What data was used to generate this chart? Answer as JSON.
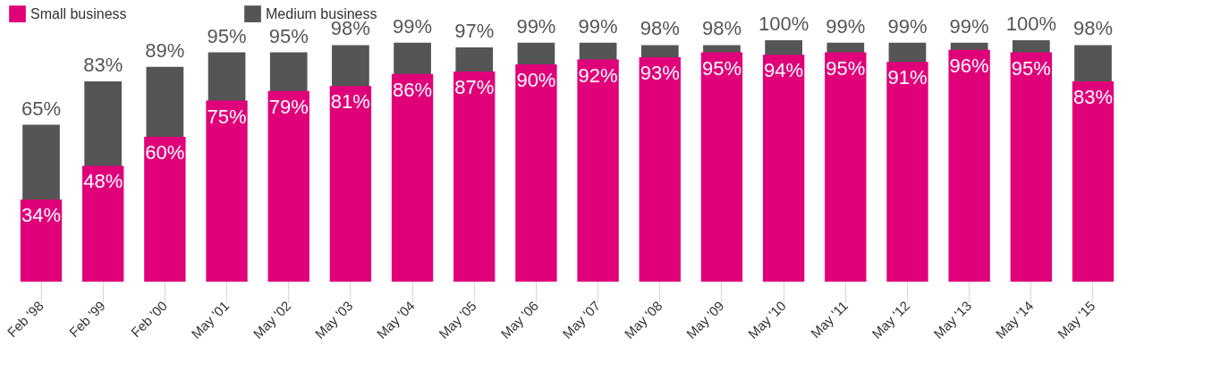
{
  "chart_data": {
    "type": "bar",
    "categories": [
      "Feb '98",
      "Feb '99",
      "Feb '00",
      "May '01",
      "May '02",
      "May '03",
      "May '04",
      "May '05",
      "May '06",
      "May '07",
      "May '08",
      "May '09",
      "May '10",
      "May '11",
      "May '12",
      "May '13",
      "May '14",
      "May '15"
    ],
    "series": [
      {
        "name": "Small business",
        "color": "#e0007a",
        "values": [
          34,
          48,
          60,
          75,
          79,
          81,
          86,
          87,
          90,
          92,
          93,
          95,
          94,
          95,
          91,
          96,
          95,
          83
        ],
        "value_labels": [
          "34%",
          "48%",
          "60%",
          "75%",
          "79%",
          "81%",
          "86%",
          "87%",
          "90%",
          "92%",
          "93%",
          "95%",
          "94%",
          "95%",
          "91%",
          "96%",
          "95%",
          "83%"
        ]
      },
      {
        "name": "Medium business",
        "color": "#555555",
        "values": [
          65,
          83,
          89,
          95,
          95,
          98,
          99,
          97,
          99,
          99,
          98,
          98,
          100,
          99,
          99,
          99,
          100,
          98
        ],
        "value_labels": [
          "65%",
          "83%",
          "89%",
          "95%",
          "95%",
          "98%",
          "99%",
          "97%",
          "99%",
          "99%",
          "98%",
          "98%",
          "100%",
          "99%",
          "99%",
          "99%",
          "100%",
          "98%"
        ]
      }
    ],
    "legend": "top left",
    "grid": false
  }
}
